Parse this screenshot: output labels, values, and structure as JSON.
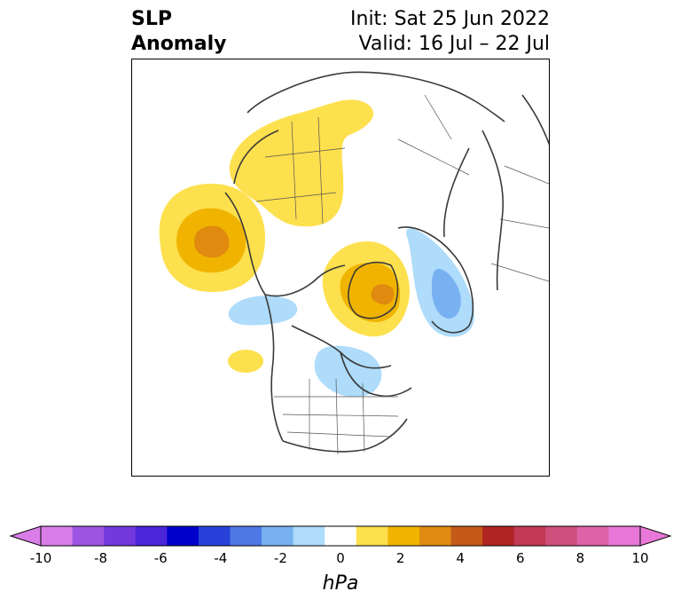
{
  "header": {
    "title_line1": "SLP",
    "title_line2": "Anomaly",
    "init_label": "Init: Sat 25 Jun 2022",
    "valid_label": "Valid: 16 Jul – 22 Jul"
  },
  "map": {
    "projection": "north-polar-stereographic",
    "variable": "sea-level-pressure-anomaly",
    "anomaly_regions": [
      {
        "region": "north-pacific",
        "sign": "positive",
        "max_level_hpa": 4
      },
      {
        "region": "siberia-arctic",
        "sign": "positive",
        "max_level_hpa": 2
      },
      {
        "region": "greenland",
        "sign": "positive",
        "max_level_hpa": 4
      },
      {
        "region": "scandinavia-north-atlantic",
        "sign": "negative",
        "min_level_hpa": -4
      },
      {
        "region": "hudson-bay-eastern-canada",
        "sign": "negative",
        "min_level_hpa": -2
      },
      {
        "region": "alaska-arctic-canada",
        "sign": "negative",
        "min_level_hpa": -2
      },
      {
        "region": "northeast-pacific",
        "sign": "positive",
        "max_level_hpa": 2
      }
    ]
  },
  "colorbar": {
    "unit": "hPa",
    "extend": "both",
    "boundaries": [
      -10,
      -9,
      -8,
      -7,
      -6,
      -5,
      -4,
      -3,
      -2,
      -1,
      1,
      2,
      3,
      4,
      5,
      6,
      7,
      8,
      9,
      10
    ],
    "colors": [
      "#d97ee8",
      "#9b55e0",
      "#7339dc",
      "#4a25d9",
      "#0000cc",
      "#2941d9",
      "#4f78e6",
      "#78b1f2",
      "#aedcfa",
      "#ffffff",
      "#fde04d",
      "#f0b400",
      "#e08a10",
      "#c55a18",
      "#b02424",
      "#c23a55",
      "#cf4f7d",
      "#dd62a8",
      "#e977d8"
    ],
    "under_color": "#d97ee8",
    "over_color": "#e977d8",
    "tick_labels": [
      "-10",
      "-8",
      "-6",
      "-4",
      "-2",
      "0",
      "2",
      "4",
      "6",
      "8",
      "10"
    ]
  }
}
